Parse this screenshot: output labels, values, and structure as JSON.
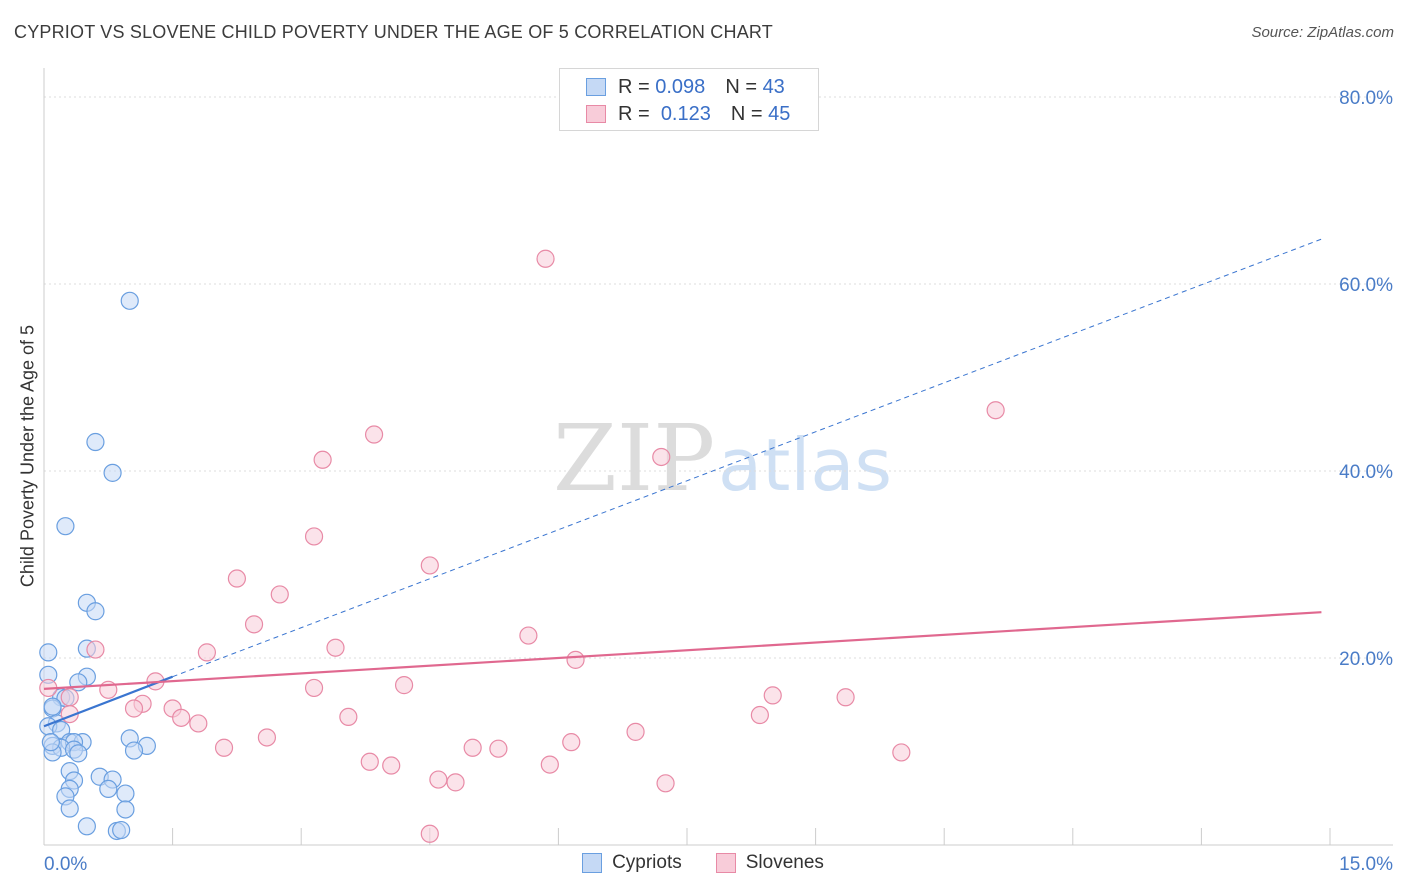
{
  "chart_data": {
    "type": "scatter",
    "title": "CYPRIOT VS SLOVENE CHILD POVERTY UNDER THE AGE OF 5 CORRELATION CHART",
    "source": "Source: ZipAtlas.com",
    "xlabel": "",
    "ylabel": "Child Poverty Under the Age of 5",
    "xlim": [
      0,
      15
    ],
    "ylim": [
      0,
      80
    ],
    "x_tick_labels": [
      "0.0%",
      "15.0%"
    ],
    "y_ticks": [
      20,
      40,
      60,
      80
    ],
    "y_tick_labels": [
      "20.0%",
      "40.0%",
      "60.0%",
      "80.0%"
    ],
    "grid": true,
    "watermark": "ZIPatlas",
    "legend_stats": [
      {
        "series": "Cypriots",
        "r_label": "R =",
        "r": "0.098",
        "n_label": "N =",
        "n": "43"
      },
      {
        "series": "Slovenes",
        "r_label": "R =",
        "r": "0.123",
        "n_label": "N =",
        "n": "45"
      }
    ],
    "series": [
      {
        "name": "Cypriots",
        "color": "#6a9fe0",
        "fill": "#c5d9f5",
        "trend": {
          "solid": [
            [
              0,
              12.7
            ],
            [
              1.5,
              18.0
            ]
          ],
          "dashed": [
            [
              1.5,
              18.0
            ],
            [
              14.9,
              64.8
            ]
          ],
          "color": "#3a75d0"
        },
        "points": [
          [
            1.0,
            58.2
          ],
          [
            0.6,
            43.1
          ],
          [
            0.8,
            39.8
          ],
          [
            0.25,
            34.1
          ],
          [
            0.5,
            25.9
          ],
          [
            0.6,
            25.0
          ],
          [
            0.05,
            20.6
          ],
          [
            0.5,
            21.0
          ],
          [
            0.05,
            18.2
          ],
          [
            0.5,
            18.0
          ],
          [
            0.4,
            17.4
          ],
          [
            0.2,
            15.8
          ],
          [
            0.25,
            15.7
          ],
          [
            0.1,
            14.6
          ],
          [
            0.15,
            13.0
          ],
          [
            0.05,
            12.7
          ],
          [
            0.2,
            12.3
          ],
          [
            0.3,
            11.0
          ],
          [
            0.45,
            11.0
          ],
          [
            0.35,
            11.0
          ],
          [
            0.1,
            10.6
          ],
          [
            0.2,
            10.4
          ],
          [
            1.0,
            11.4
          ],
          [
            1.2,
            10.6
          ],
          [
            0.35,
            10.2
          ],
          [
            0.4,
            9.8
          ],
          [
            0.1,
            9.9
          ],
          [
            1.05,
            10.1
          ],
          [
            0.3,
            7.9
          ],
          [
            0.35,
            6.9
          ],
          [
            0.65,
            7.3
          ],
          [
            0.8,
            7.0
          ],
          [
            0.3,
            6.0
          ],
          [
            0.75,
            6.0
          ],
          [
            0.25,
            5.2
          ],
          [
            0.95,
            5.5
          ],
          [
            0.3,
            3.9
          ],
          [
            0.95,
            3.8
          ],
          [
            0.5,
            2.0
          ],
          [
            0.85,
            1.5
          ],
          [
            0.9,
            1.6
          ],
          [
            0.1,
            14.8
          ],
          [
            0.08,
            11.0
          ]
        ]
      },
      {
        "name": "Slovenes",
        "color": "#e88aa6",
        "fill": "#f8ccd9",
        "trend": {
          "solid": [
            [
              0,
              16.7
            ],
            [
              14.9,
              24.9
            ]
          ],
          "color": "#e0688f"
        },
        "points": [
          [
            5.85,
            62.7
          ],
          [
            11.1,
            46.5
          ],
          [
            3.85,
            43.9
          ],
          [
            3.25,
            41.2
          ],
          [
            7.2,
            41.5
          ],
          [
            3.15,
            33.0
          ],
          [
            4.5,
            29.9
          ],
          [
            2.25,
            28.5
          ],
          [
            2.75,
            26.8
          ],
          [
            2.45,
            23.6
          ],
          [
            5.65,
            22.4
          ],
          [
            0.6,
            20.9
          ],
          [
            1.9,
            20.6
          ],
          [
            3.4,
            21.1
          ],
          [
            6.2,
            19.8
          ],
          [
            1.3,
            17.5
          ],
          [
            3.15,
            16.8
          ],
          [
            4.2,
            17.1
          ],
          [
            0.05,
            16.8
          ],
          [
            0.3,
            15.8
          ],
          [
            0.75,
            16.6
          ],
          [
            1.15,
            15.1
          ],
          [
            1.05,
            14.6
          ],
          [
            1.5,
            14.6
          ],
          [
            1.6,
            13.6
          ],
          [
            1.8,
            13.0
          ],
          [
            3.55,
            13.7
          ],
          [
            8.5,
            16.0
          ],
          [
            9.35,
            15.8
          ],
          [
            8.35,
            13.9
          ],
          [
            0.3,
            14.0
          ],
          [
            6.9,
            12.1
          ],
          [
            2.6,
            11.5
          ],
          [
            6.15,
            11.0
          ],
          [
            2.1,
            10.4
          ],
          [
            5.0,
            10.4
          ],
          [
            5.3,
            10.3
          ],
          [
            10.0,
            9.9
          ],
          [
            3.8,
            8.9
          ],
          [
            4.05,
            8.5
          ],
          [
            5.9,
            8.6
          ],
          [
            4.6,
            7.0
          ],
          [
            4.8,
            6.7
          ],
          [
            7.25,
            6.6
          ],
          [
            4.5,
            1.2
          ]
        ]
      }
    ]
  }
}
